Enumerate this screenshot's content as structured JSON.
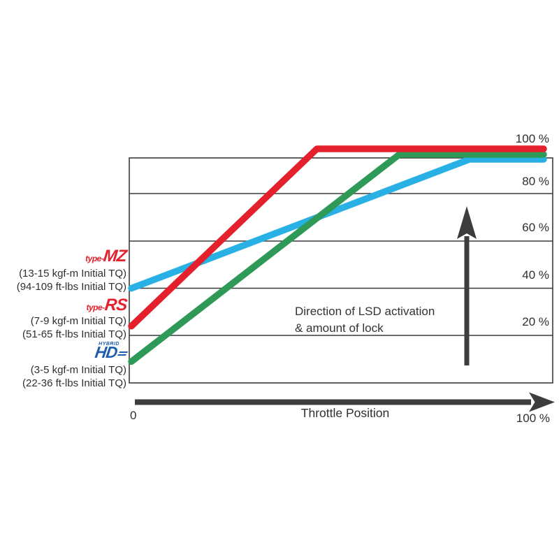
{
  "axis": {
    "y_ticks": [
      "100 %",
      "80 %",
      "60 %",
      "40 %",
      "20 %"
    ],
    "x_label": "Throttle Position",
    "x_min": "0",
    "x_max": "100 %"
  },
  "annotation": {
    "line1": "Direction of LSD activation",
    "line2": "& amount of lock"
  },
  "legend": {
    "items": [
      {
        "prefix": "type-",
        "name": "MZ",
        "spec1": "(13-15 kgf-m Initial TQ)",
        "spec2": "(94-109 ft-lbs Initial TQ)"
      },
      {
        "prefix": "type-",
        "name": "RS",
        "spec1": "(7-9 kgf-m Initial TQ)",
        "spec2": "(51-65 ft-lbs Initial TQ)"
      },
      {
        "name": "HD",
        "small": "HYBRID",
        "spec1": "(3-5 kgf-m Initial TQ)",
        "spec2": "(22-36 ft-lbs Initial TQ)"
      }
    ]
  },
  "colors": {
    "red": "#e3202b",
    "green": "#2f9a57",
    "blue": "#29b1e6",
    "hd_blue": "#1e5dad",
    "arrow_gray": "#3d3d3f"
  },
  "chart_data": {
    "type": "line",
    "xlabel": "Throttle Position",
    "x_range": [
      0,
      100
    ],
    "y_range": [
      0,
      100
    ],
    "y_ticks": [
      100,
      80,
      60,
      40,
      20
    ],
    "grid": true,
    "annotation": "Direction of LSD activation & amount of lock",
    "series": [
      {
        "name": "type-MZ",
        "color": "#29b1e6",
        "initial_torque": "13-15 kgf-m / 94-109 ft-lbs",
        "points": [
          [
            0,
            40
          ],
          [
            82,
            100
          ],
          [
            100,
            100
          ]
        ]
      },
      {
        "name": "type-RS",
        "color": "#e3202b",
        "initial_torque": "7-9 kgf-m / 51-65 ft-lbs",
        "points": [
          [
            0,
            24
          ],
          [
            45,
            100
          ],
          [
            100,
            100
          ]
        ]
      },
      {
        "name": "HD",
        "color": "#2f9a57",
        "initial_torque": "3-5 kgf-m / 22-36 ft-lbs",
        "points": [
          [
            0,
            9
          ],
          [
            65,
            100
          ],
          [
            100,
            100
          ]
        ]
      }
    ]
  }
}
